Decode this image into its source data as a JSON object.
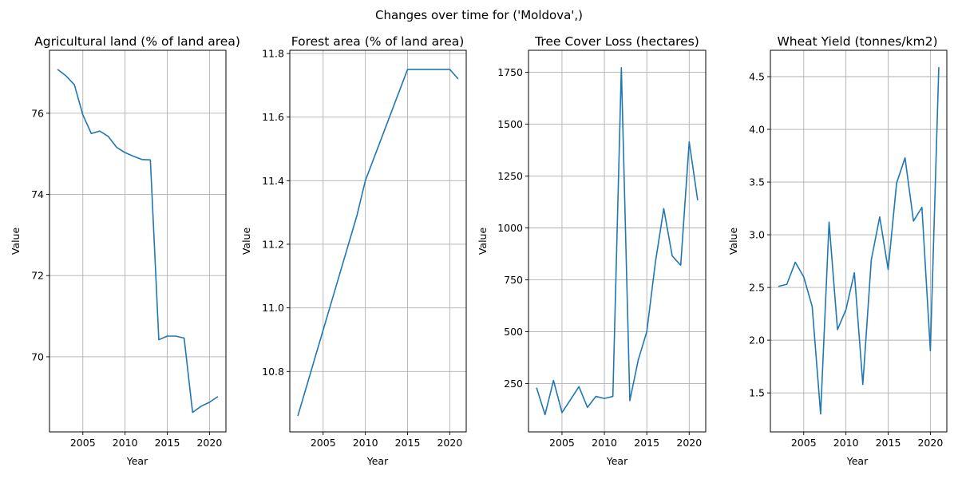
{
  "figure": {
    "title": "Changes over time for ('Moldova',)",
    "line_color": "#1f77b4"
  },
  "chart_data": [
    {
      "type": "line",
      "title": "Agricultural land (% of land area)",
      "xlabel": "Year",
      "ylabel": "Value",
      "grid": true,
      "xlim": [
        2001.05,
        2021.95
      ],
      "ylim": [
        68.15,
        77.55
      ],
      "xticks": [
        2005,
        2010,
        2015,
        2020
      ],
      "yticks": [
        70,
        72,
        74,
        76
      ],
      "series": [
        {
          "x": [
            2002,
            2003,
            2004,
            2005,
            2006,
            2007,
            2008,
            2009,
            2010,
            2011,
            2012,
            2013,
            2014,
            2015,
            2016,
            2017,
            2018,
            2019,
            2020,
            2021
          ],
          "values": [
            77.08,
            76.92,
            76.7,
            75.96,
            75.5,
            75.56,
            75.43,
            75.16,
            75.03,
            74.94,
            74.86,
            74.85,
            70.42,
            70.51,
            70.51,
            70.46,
            68.63,
            68.78,
            68.88,
            69.02
          ]
        }
      ]
    },
    {
      "type": "line",
      "title": "Forest area (% of land area)",
      "xlabel": "Year",
      "ylabel": "Value",
      "grid": true,
      "xlim": [
        2001.05,
        2021.95
      ],
      "ylim": [
        10.61,
        11.81
      ],
      "xticks": [
        2005,
        2010,
        2015,
        2020
      ],
      "yticks": [
        10.8,
        11.0,
        11.2,
        11.4,
        11.6,
        11.8
      ],
      "series": [
        {
          "x": [
            2002,
            2003,
            2004,
            2005,
            2006,
            2007,
            2008,
            2009,
            2010,
            2011,
            2012,
            2013,
            2014,
            2015,
            2016,
            2017,
            2018,
            2019,
            2020,
            2021
          ],
          "values": [
            10.66,
            10.75,
            10.84,
            10.93,
            11.02,
            11.11,
            11.2,
            11.29,
            11.4,
            11.47,
            11.54,
            11.61,
            11.68,
            11.75,
            11.75,
            11.75,
            11.75,
            11.75,
            11.75,
            11.72
          ]
        }
      ]
    },
    {
      "type": "line",
      "title": "Tree Cover Loss (hectares)",
      "xlabel": "Year",
      "ylabel": "Value",
      "grid": true,
      "xlim": [
        2001.05,
        2021.95
      ],
      "ylim": [
        17,
        1856
      ],
      "xticks": [
        2005,
        2010,
        2015,
        2020
      ],
      "yticks": [
        250,
        500,
        750,
        1000,
        1250,
        1500,
        1750
      ],
      "series": [
        {
          "x": [
            2002,
            2003,
            2004,
            2005,
            2006,
            2007,
            2008,
            2009,
            2010,
            2011,
            2012,
            2013,
            2014,
            2015,
            2016,
            2017,
            2018,
            2019,
            2020,
            2021
          ],
          "values": [
            230,
            100,
            265,
            110,
            172,
            235,
            135,
            188,
            178,
            188,
            1772,
            168,
            365,
            500,
            830,
            1093,
            865,
            820,
            1415,
            1133
          ]
        }
      ]
    },
    {
      "type": "line",
      "title": "Wheat Yield (tonnes/km2)",
      "xlabel": "Year",
      "ylabel": "Value",
      "grid": true,
      "xlim": [
        2001.05,
        2021.95
      ],
      "ylim": [
        1.13,
        4.75
      ],
      "xticks": [
        2005,
        2010,
        2015,
        2020
      ],
      "yticks": [
        1.5,
        2.0,
        2.5,
        3.0,
        3.5,
        4.0,
        4.5
      ],
      "series": [
        {
          "x": [
            2002,
            2003,
            2004,
            2005,
            2006,
            2007,
            2008,
            2009,
            2010,
            2011,
            2012,
            2013,
            2014,
            2015,
            2016,
            2017,
            2018,
            2019,
            2020,
            2021
          ],
          "values": [
            2.51,
            2.53,
            2.74,
            2.6,
            2.32,
            1.3,
            3.12,
            2.1,
            2.29,
            2.64,
            1.58,
            2.76,
            3.17,
            2.67,
            3.49,
            3.73,
            3.13,
            3.26,
            1.9,
            4.59
          ]
        }
      ]
    }
  ]
}
